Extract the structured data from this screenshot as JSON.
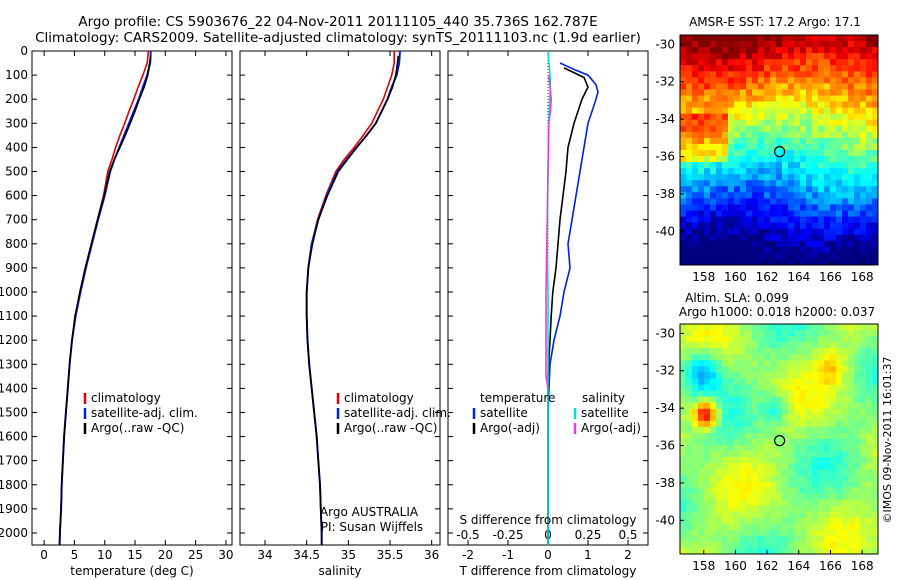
{
  "header": {
    "title_line1": "Argo profile: CS 5903676_22 04-Nov-2011 20111105_440 35.736S 162.787E",
    "title_line2": "Climatology: CARS2009. Satellite-adjusted climatology: synTS_20111103.nc (1.9d earlier)"
  },
  "colors": {
    "climatology": "#e00000",
    "satellite": "#0020e0",
    "argo": "#000000",
    "salinity_satellite": "#00e0e0",
    "salinity_argo": "#e040e0"
  },
  "legend": {
    "climatology": "climatology",
    "satellite_adj": "satellite-adj. clim.",
    "argo_raw": "Argo(..raw -QC)",
    "temperature_heading": "temperature",
    "salinity_heading": "salinity",
    "satellite": "satellite",
    "argo_adj": "Argo(-adj)"
  },
  "annotations": {
    "agency": "Argo AUSTRALIA",
    "pi": "PI: Susan Wijffels",
    "timestamp": "©IMOS 09-Nov-2011 16:01:37"
  },
  "maps": {
    "sst_title": "AMSR-E SST: 17.2 Argo: 17.1",
    "sla_title_line1": "Altim. SLA: 0.099",
    "sla_title_line2": "Argo h1000: 0.018 h2000: 0.037",
    "lon_ticks": [
      "158",
      "160",
      "162",
      "164",
      "166",
      "168"
    ],
    "lat_ticks": [
      "-30",
      "-32",
      "-34",
      "-36",
      "-38",
      "-40"
    ],
    "float_lon": 162.787,
    "float_lat": -35.736
  },
  "chart_data": [
    {
      "type": "line",
      "panel": "temperature",
      "xlabel": "temperature (deg C)",
      "ylabel": "",
      "xlim": [
        -2,
        31
      ],
      "ylim": [
        2050,
        0
      ],
      "xticks": [
        "0",
        "5",
        "10",
        "15",
        "20",
        "25",
        "30"
      ],
      "yticks": [
        "0",
        "100",
        "200",
        "300",
        "400",
        "500",
        "600",
        "700",
        "800",
        "900",
        "1000",
        "1100",
        "1200",
        "1300",
        "1400",
        "1500",
        "1600",
        "1700",
        "1800",
        "1900",
        "2000"
      ],
      "series": [
        {
          "name": "climatology",
          "points": [
            [
              17.2,
              0
            ],
            [
              17.0,
              50
            ],
            [
              16.3,
              100
            ],
            [
              15.5,
              150
            ],
            [
              14.8,
              200
            ],
            [
              14.0,
              250
            ],
            [
              13.3,
              300
            ],
            [
              12.5,
              350
            ],
            [
              11.8,
              400
            ],
            [
              11.2,
              450
            ],
            [
              10.5,
              500
            ],
            [
              9.8,
              600
            ],
            [
              8.8,
              700
            ],
            [
              7.8,
              800
            ],
            [
              6.8,
              900
            ],
            [
              5.9,
              1000
            ],
            [
              5.2,
              1100
            ],
            [
              4.6,
              1200
            ],
            [
              4.2,
              1300
            ],
            [
              3.9,
              1400
            ],
            [
              3.6,
              1500
            ],
            [
              3.3,
              1600
            ],
            [
              3.1,
              1700
            ],
            [
              2.9,
              1800
            ],
            [
              2.8,
              1900
            ],
            [
              2.6,
              2000
            ],
            [
              2.55,
              2050
            ]
          ]
        },
        {
          "name": "satellite-adj. clim.",
          "points": [
            [
              17.6,
              0
            ],
            [
              17.5,
              50
            ],
            [
              17.0,
              100
            ],
            [
              16.3,
              150
            ],
            [
              15.6,
              200
            ],
            [
              14.8,
              250
            ],
            [
              14.0,
              300
            ],
            [
              13.2,
              350
            ],
            [
              12.4,
              400
            ],
            [
              11.6,
              450
            ],
            [
              10.9,
              500
            ],
            [
              10.0,
              600
            ],
            [
              8.9,
              700
            ],
            [
              7.9,
              800
            ],
            [
              6.9,
              900
            ],
            [
              6.0,
              1000
            ],
            [
              5.2,
              1100
            ],
            [
              4.6,
              1200
            ],
            [
              4.2,
              1300
            ],
            [
              3.9,
              1400
            ],
            [
              3.6,
              1500
            ],
            [
              3.3,
              1600
            ],
            [
              3.1,
              1700
            ],
            [
              2.9,
              1800
            ],
            [
              2.8,
              1900
            ],
            [
              2.6,
              2000
            ],
            [
              2.55,
              2050
            ]
          ]
        },
        {
          "name": "Argo(..raw -QC)",
          "points": [
            [
              17.6,
              20
            ],
            [
              17.4,
              50
            ],
            [
              17.1,
              100
            ],
            [
              16.5,
              150
            ],
            [
              15.7,
              200
            ],
            [
              15.0,
              250
            ],
            [
              14.2,
              300
            ],
            [
              13.4,
              350
            ],
            [
              12.5,
              400
            ],
            [
              11.6,
              450
            ],
            [
              10.8,
              500
            ],
            [
              9.9,
              600
            ],
            [
              8.8,
              700
            ],
            [
              7.8,
              800
            ],
            [
              6.8,
              900
            ],
            [
              5.9,
              1000
            ],
            [
              5.1,
              1100
            ],
            [
              4.6,
              1200
            ],
            [
              4.2,
              1300
            ],
            [
              3.9,
              1400
            ],
            [
              3.6,
              1500
            ],
            [
              3.3,
              1600
            ],
            [
              3.1,
              1700
            ],
            [
              2.9,
              1800
            ],
            [
              2.8,
              1900
            ],
            [
              2.6,
              2000
            ],
            [
              2.55,
              2050
            ]
          ]
        }
      ]
    },
    {
      "type": "line",
      "panel": "salinity",
      "xlabel": "salinity",
      "ylabel": "",
      "xlim": [
        33.7,
        36.1
      ],
      "ylim": [
        2050,
        0
      ],
      "xticks": [
        "34",
        "34.5",
        "35",
        "35.5",
        "36"
      ],
      "series": [
        {
          "name": "climatology",
          "points": [
            [
              35.55,
              0
            ],
            [
              35.55,
              50
            ],
            [
              35.52,
              100
            ],
            [
              35.47,
              150
            ],
            [
              35.42,
              200
            ],
            [
              35.35,
              250
            ],
            [
              35.28,
              300
            ],
            [
              35.18,
              350
            ],
            [
              35.07,
              400
            ],
            [
              34.95,
              450
            ],
            [
              34.85,
              500
            ],
            [
              34.73,
              600
            ],
            [
              34.63,
              700
            ],
            [
              34.56,
              800
            ],
            [
              34.52,
              900
            ],
            [
              34.5,
              1000
            ],
            [
              34.5,
              1100
            ],
            [
              34.51,
              1200
            ],
            [
              34.53,
              1300
            ],
            [
              34.56,
              1400
            ],
            [
              34.59,
              1500
            ],
            [
              34.62,
              1600
            ],
            [
              34.64,
              1700
            ],
            [
              34.66,
              1800
            ],
            [
              34.67,
              1900
            ],
            [
              34.68,
              2000
            ],
            [
              34.68,
              2050
            ]
          ]
        },
        {
          "name": "satellite-adj. clim.",
          "points": [
            [
              35.62,
              0
            ],
            [
              35.61,
              50
            ],
            [
              35.58,
              100
            ],
            [
              35.52,
              150
            ],
            [
              35.47,
              200
            ],
            [
              35.4,
              250
            ],
            [
              35.33,
              300
            ],
            [
              35.22,
              350
            ],
            [
              35.1,
              400
            ],
            [
              34.98,
              450
            ],
            [
              34.87,
              500
            ],
            [
              34.74,
              600
            ],
            [
              34.64,
              700
            ],
            [
              34.56,
              800
            ],
            [
              34.52,
              900
            ],
            [
              34.5,
              1000
            ],
            [
              34.5,
              1100
            ],
            [
              34.51,
              1200
            ],
            [
              34.53,
              1300
            ],
            [
              34.56,
              1400
            ],
            [
              34.59,
              1500
            ],
            [
              34.62,
              1600
            ],
            [
              34.64,
              1700
            ],
            [
              34.66,
              1800
            ],
            [
              34.67,
              1900
            ],
            [
              34.68,
              2000
            ],
            [
              34.68,
              2050
            ]
          ]
        },
        {
          "name": "Argo(..raw -QC)",
          "points": [
            [
              35.6,
              20
            ],
            [
              35.59,
              50
            ],
            [
              35.57,
              100
            ],
            [
              35.53,
              150
            ],
            [
              35.47,
              200
            ],
            [
              35.4,
              250
            ],
            [
              35.33,
              300
            ],
            [
              35.22,
              350
            ],
            [
              35.1,
              400
            ],
            [
              34.99,
              450
            ],
            [
              34.88,
              500
            ],
            [
              34.75,
              600
            ],
            [
              34.64,
              700
            ],
            [
              34.57,
              800
            ],
            [
              34.52,
              900
            ],
            [
              34.5,
              1000
            ],
            [
              34.5,
              1100
            ],
            [
              34.51,
              1200
            ],
            [
              34.53,
              1300
            ],
            [
              34.56,
              1400
            ],
            [
              34.59,
              1500
            ],
            [
              34.62,
              1600
            ],
            [
              34.64,
              1700
            ],
            [
              34.66,
              1800
            ],
            [
              34.67,
              1900
            ],
            [
              34.68,
              2000
            ],
            [
              34.68,
              2050
            ]
          ]
        }
      ]
    },
    {
      "type": "line",
      "panel": "difference",
      "xlabel": "T difference from climatology",
      "xlabel_top": "S difference from climatology",
      "xlim": [
        -2.5,
        2.5
      ],
      "ylim": [
        2050,
        0
      ],
      "xticks": [
        "-2",
        "-1",
        "0",
        "1",
        "2"
      ],
      "xticks_top": [
        "-0.5",
        "-0.25",
        "0",
        "0.25",
        "0.5"
      ],
      "series": [
        {
          "name": "temperature satellite",
          "points": [
            [
              0.3,
              50
            ],
            [
              0.7,
              80
            ],
            [
              1.0,
              100
            ],
            [
              1.2,
              140
            ],
            [
              1.25,
              170
            ],
            [
              1.2,
              200
            ],
            [
              1.0,
              300
            ],
            [
              0.9,
              400
            ],
            [
              0.8,
              500
            ],
            [
              0.6,
              700
            ],
            [
              0.5,
              800
            ],
            [
              0.55,
              900
            ],
            [
              0.4,
              1000
            ],
            [
              0.3,
              1100
            ],
            [
              0.15,
              1200
            ],
            [
              0.05,
              1300
            ],
            [
              0.0,
              1500
            ],
            [
              0.0,
              2050
            ]
          ]
        },
        {
          "name": "temperature Argo(-adj)",
          "points": [
            [
              0.4,
              70
            ],
            [
              0.9,
              110
            ],
            [
              1.0,
              150
            ],
            [
              0.85,
              200
            ],
            [
              0.65,
              300
            ],
            [
              0.5,
              400
            ],
            [
              0.45,
              500
            ],
            [
              0.3,
              700
            ],
            [
              0.25,
              800
            ],
            [
              0.2,
              900
            ],
            [
              0.12,
              1000
            ],
            [
              0.08,
              1100
            ],
            [
              0.05,
              1200
            ],
            [
              0.0,
              1350
            ],
            [
              0.0,
              2050
            ]
          ]
        },
        {
          "name": "salinity satellite",
          "points": [
            [
              0.0,
              0
            ],
            [
              0.05,
              100
            ],
            [
              0.06,
              150
            ],
            [
              0.04,
              200
            ],
            [
              0.02,
              300
            ],
            [
              0.0,
              500
            ],
            [
              -0.02,
              800
            ],
            [
              0.0,
              1000
            ],
            [
              0.0,
              2050
            ]
          ]
        },
        {
          "name": "salinity Argo(-adj)",
          "points": [
            [
              0.02,
              100
            ],
            [
              0.05,
              150
            ],
            [
              0.08,
              200
            ],
            [
              0.06,
              250
            ],
            [
              0.02,
              300
            ],
            [
              0.0,
              500
            ],
            [
              -0.03,
              800
            ],
            [
              -0.05,
              1000
            ],
            [
              -0.05,
              1350
            ],
            [
              0.0,
              1400
            ]
          ]
        }
      ]
    }
  ]
}
